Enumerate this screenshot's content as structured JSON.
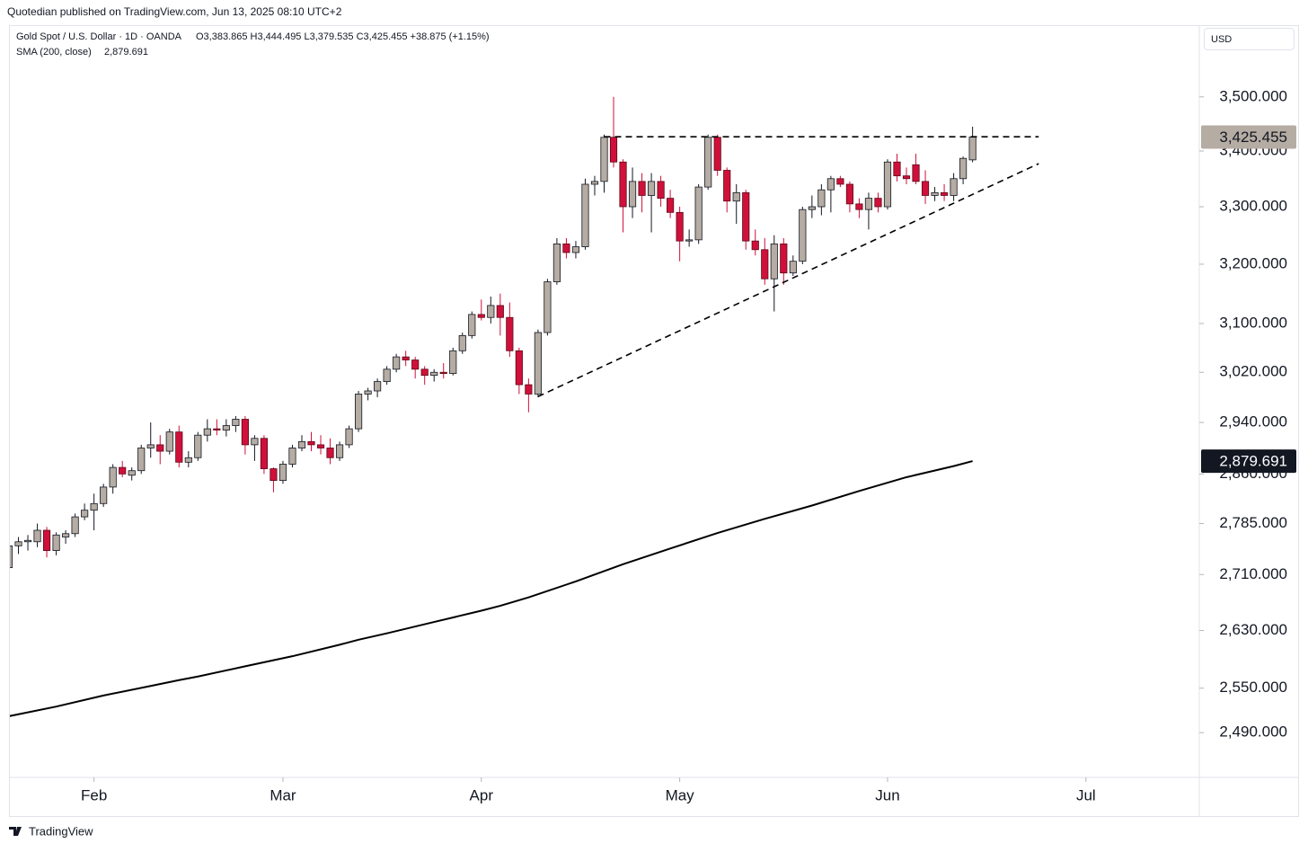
{
  "header": {
    "publisher": "Quotedian published on TradingView.com, Jun 13, 2025 08:10 UTC+2"
  },
  "footer": {
    "brand": "TradingView"
  },
  "chart_data": {
    "type": "candlestick",
    "symbol": "Gold Spot / U.S. Dollar · 1D · OANDA",
    "ohlc_text": "O3,383.865  H3,444.495  L3,379.535  C3,425.455  +38.875 (+1.15%)",
    "indicator_name": "SMA (200, close)",
    "indicator_value": "2,879.691",
    "currency": "USD",
    "log_scale": true,
    "up_color": "#b5aca3",
    "down_color": "#d0103a",
    "open": [
      2720,
      2752,
      2758,
      2758,
      2775,
      2745,
      2765,
      2770,
      2795,
      2805,
      2815,
      2840,
      2870,
      2858,
      2865,
      2900,
      2905,
      2895,
      2925,
      2878,
      2885,
      2920,
      2930,
      2928,
      2935,
      2945,
      2905,
      2915,
      2868,
      2850,
      2875,
      2900,
      2910,
      2905,
      2900,
      2885,
      2905,
      2930,
      2985,
      2990,
      3005,
      3025,
      3045,
      3040,
      3025,
      3015,
      3020,
      3018,
      3055,
      3080,
      3115,
      3110,
      3130,
      3110,
      3055,
      3000,
      2985,
      3085,
      3170,
      3235,
      3220,
      3230,
      3340,
      3345,
      3425,
      3380,
      3300,
      3345,
      3320,
      3345,
      3315,
      3290,
      3240,
      3242,
      3335,
      3425,
      3365,
      3310,
      3325,
      3240,
      3225,
      3175,
      3235,
      3185,
      3205,
      3295,
      3300,
      3330,
      3350,
      3340,
      3305,
      3295,
      3315,
      3300,
      3380,
      3355,
      3375,
      3345,
      3320,
      3325,
      3320,
      3350,
      3383.865
    ],
    "high": [
      2760,
      2765,
      2768,
      2785,
      2780,
      2772,
      2775,
      2800,
      2815,
      2830,
      2845,
      2875,
      2880,
      2870,
      2905,
      2940,
      2920,
      2930,
      2935,
      2895,
      2925,
      2945,
      2945,
      2945,
      2950,
      2950,
      2920,
      2920,
      2870,
      2880,
      2905,
      2920,
      2925,
      2920,
      2915,
      2910,
      2935,
      2990,
      2995,
      3010,
      3030,
      3050,
      3055,
      3045,
      3030,
      3025,
      3035,
      3060,
      3085,
      3120,
      3140,
      3145,
      3150,
      3135,
      3060,
      3010,
      3090,
      3175,
      3245,
      3245,
      3240,
      3350,
      3355,
      3430,
      3500,
      3385,
      3370,
      3360,
      3360,
      3355,
      3330,
      3300,
      3260,
      3340,
      3430,
      3430,
      3370,
      3340,
      3330,
      3260,
      3245,
      3250,
      3245,
      3215,
      3300,
      3320,
      3340,
      3355,
      3355,
      3345,
      3315,
      3325,
      3325,
      3385,
      3395,
      3370,
      3395,
      3365,
      3335,
      3340,
      3360,
      3390,
      3444.495
    ],
    "low": [
      2705,
      2740,
      2745,
      2750,
      2735,
      2738,
      2755,
      2765,
      2790,
      2775,
      2810,
      2830,
      2855,
      2850,
      2860,
      2885,
      2875,
      2890,
      2870,
      2870,
      2880,
      2910,
      2920,
      2918,
      2925,
      2890,
      2880,
      2860,
      2832,
      2845,
      2870,
      2895,
      2895,
      2890,
      2875,
      2880,
      2900,
      2925,
      2975,
      2980,
      3000,
      3020,
      3030,
      3010,
      3000,
      3005,
      3010,
      3015,
      3050,
      3075,
      3105,
      3100,
      3080,
      3045,
      2985,
      2956,
      2980,
      3080,
      3165,
      3210,
      3210,
      3225,
      3320,
      3325,
      3370,
      3255,
      3280,
      3290,
      3255,
      3300,
      3280,
      3205,
      3230,
      3235,
      3330,
      3355,
      3290,
      3270,
      3225,
      3215,
      3165,
      3120,
      3165,
      3180,
      3200,
      3280,
      3285,
      3290,
      3335,
      3290,
      3280,
      3260,
      3290,
      3295,
      3345,
      3340,
      3340,
      3305,
      3310,
      3310,
      3310,
      3340,
      3379.535
    ],
    "close": [
      2752,
      2758,
      2760,
      2775,
      2745,
      2768,
      2770,
      2795,
      2805,
      2815,
      2840,
      2870,
      2860,
      2865,
      2900,
      2905,
      2895,
      2925,
      2878,
      2885,
      2920,
      2930,
      2928,
      2935,
      2945,
      2905,
      2915,
      2868,
      2850,
      2875,
      2900,
      2910,
      2905,
      2900,
      2885,
      2905,
      2930,
      2985,
      2990,
      3005,
      3025,
      3045,
      3040,
      3025,
      3015,
      3020,
      3018,
      3055,
      3080,
      3115,
      3110,
      3130,
      3110,
      3055,
      3000,
      2985,
      3085,
      3170,
      3235,
      3220,
      3230,
      3340,
      3345,
      3425,
      3380,
      3300,
      3345,
      3320,
      3345,
      3315,
      3290,
      3240,
      3242,
      3335,
      3425,
      3365,
      3310,
      3325,
      3240,
      3225,
      3175,
      3235,
      3185,
      3205,
      3295,
      3300,
      3330,
      3350,
      3340,
      3305,
      3295,
      3315,
      3300,
      3380,
      3355,
      3350,
      3345,
      3320,
      3325,
      3320,
      3350,
      3386.58,
      3425.455
    ],
    "overlay": {
      "color": "#000000",
      "x": [
        0,
        5,
        10,
        15,
        18,
        20,
        25,
        30,
        35,
        37,
        40,
        45,
        50,
        52,
        55,
        60,
        65,
        70,
        75,
        80,
        85,
        90,
        95,
        100,
        102
      ],
      "values": [
        2512,
        2525,
        2540,
        2553,
        2561,
        2566,
        2580,
        2594,
        2610,
        2617,
        2626,
        2642,
        2658,
        2665,
        2677,
        2700,
        2725,
        2748,
        2771,
        2792,
        2812,
        2834,
        2855,
        2872,
        2879.691
      ]
    },
    "lines": [
      {
        "x": [
          63,
          109
        ],
        "values": [
          3426,
          3426
        ]
      },
      {
        "x": [
          56,
          109
        ],
        "values": [
          2981,
          3377
        ]
      }
    ],
    "price_labels": [
      {
        "value": 2879.691,
        "label": "2,879.691",
        "color": "#131722",
        "text_color": "#ffffff"
      },
      {
        "value": 3425.455,
        "label": "3,425.455",
        "color": "#b5aca3",
        "text_color": "#131722"
      }
    ],
    "xlim": [
      0,
      126
    ],
    "xticks": [
      {
        "value": 9,
        "label": "Feb"
      },
      {
        "value": 29,
        "label": "Mar"
      },
      {
        "value": 50,
        "label": "Apr"
      },
      {
        "value": 71,
        "label": "May"
      },
      {
        "value": 93,
        "label": "Jun"
      },
      {
        "value": 114,
        "label": "Jul"
      }
    ],
    "ylim": [
      2431,
      3637
    ],
    "yticks": [
      {
        "value": 2490,
        "label": "2,490.000"
      },
      {
        "value": 2550,
        "label": "2,550.000"
      },
      {
        "value": 2630,
        "label": "2,630.000"
      },
      {
        "value": 2710,
        "label": "2,710.000"
      },
      {
        "value": 2785,
        "label": "2,785.000"
      },
      {
        "value": 2860,
        "label": "2,860.000"
      },
      {
        "value": 2940,
        "label": "2,940.000"
      },
      {
        "value": 3020,
        "label": "3,020.000"
      },
      {
        "value": 3100,
        "label": "3,100.000"
      },
      {
        "value": 3200,
        "label": "3,200.000"
      },
      {
        "value": 3300,
        "label": "3,300.000"
      },
      {
        "value": 3400,
        "label": "3,400.000"
      },
      {
        "value": 3500,
        "label": "3,500.000"
      }
    ]
  }
}
